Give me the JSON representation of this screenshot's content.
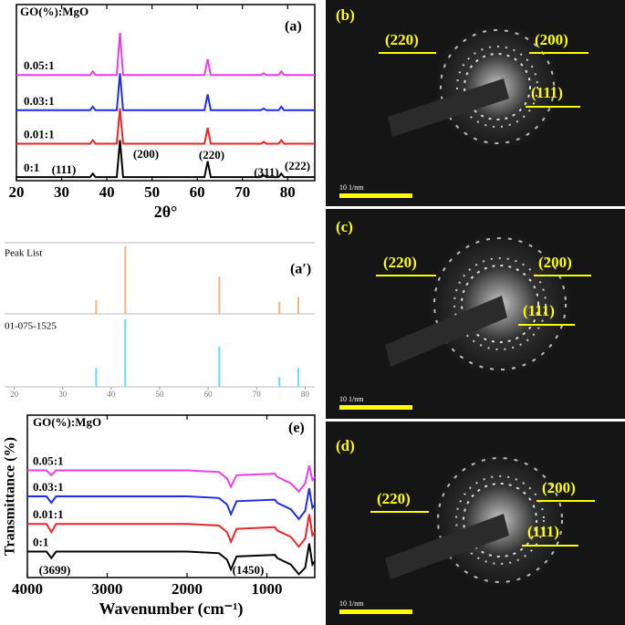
{
  "chart_data": [
    {
      "type": "line",
      "panel_label": "(a)",
      "title": "GO(%):MgO",
      "x_label": "2θ°",
      "annotations": [
        "(111)",
        "(200)",
        "(220)",
        "(311)",
        "(222)"
      ],
      "x": [
        20,
        36.3,
        36.9,
        37.5,
        42.2,
        42.9,
        43.6,
        61.6,
        62.3,
        63.0,
        74.1,
        74.7,
        75.3,
        78.0,
        78.6,
        79.2,
        86
      ],
      "xlim": [
        20,
        86
      ],
      "xticks": [
        20,
        30,
        40,
        50,
        60,
        70,
        80
      ],
      "ylim": [
        0,
        100
      ],
      "series": [
        {
          "name": "0:1",
          "color": "#000000",
          "values": [
            2,
            2,
            4,
            2,
            2,
            23,
            2,
            2,
            11,
            2,
            2,
            3,
            2,
            2,
            4,
            2,
            2
          ]
        },
        {
          "name": "0.01:1",
          "color": "#e8262a",
          "values": [
            21,
            21,
            23,
            21,
            21,
            41,
            21,
            21,
            30,
            21,
            21,
            22,
            21,
            21,
            23,
            21,
            21
          ]
        },
        {
          "name": "0.03:1",
          "color": "#1f2ee0",
          "values": [
            40,
            40,
            42,
            40,
            40,
            61,
            40,
            40,
            49,
            40,
            40,
            41,
            40,
            40,
            42,
            40,
            40
          ]
        },
        {
          "name": "0.05:1",
          "color": "#e83ee8",
          "values": [
            60,
            60,
            62,
            60,
            60,
            84,
            60,
            60,
            69,
            60,
            60,
            61,
            60,
            60,
            62,
            60,
            60
          ]
        }
      ]
    },
    {
      "type": "stick",
      "panel_label": "(a′)",
      "x": [
        36.9,
        42.9,
        62.3,
        74.7,
        78.6
      ],
      "xlim": [
        18,
        82
      ],
      "xticks": [
        20,
        30,
        40,
        50,
        60,
        70,
        80
      ],
      "ylim": [
        0,
        100
      ],
      "series": [
        {
          "name": "Peak List",
          "color": "#f4b183",
          "values": [
            20,
            100,
            55,
            18,
            25
          ]
        },
        {
          "name": "01-075-1525",
          "color": "#66dff0",
          "values": [
            28,
            100,
            60,
            14,
            28
          ]
        }
      ]
    },
    {
      "type": "line",
      "panel_label": "(e)",
      "title": "GO(%):MgO",
      "x_label": "Wavenumber (cm⁻¹)",
      "y_label": "Transmittance (%)",
      "annotations": [
        "(3699)",
        "(1450)"
      ],
      "x": [
        4000,
        3760,
        3699,
        3640,
        2000,
        1600,
        1500,
        1450,
        1380,
        900,
        870,
        700,
        600,
        520,
        470,
        430,
        400
      ],
      "xlim": [
        4000,
        400
      ],
      "xticks": [
        4000,
        3000,
        2000,
        1000
      ],
      "ylim": [
        0,
        100
      ],
      "series": [
        {
          "name": "0:1",
          "color": "#000000",
          "values": [
            16,
            16,
            12,
            16,
            16,
            15,
            11,
            5,
            13,
            14,
            12,
            8,
            2,
            6,
            21,
            8,
            10
          ]
        },
        {
          "name": "0.01:1",
          "color": "#e8262a",
          "values": [
            33,
            33,
            28,
            33,
            33,
            32,
            28,
            22,
            30,
            31,
            29,
            25,
            19,
            24,
            39,
            26,
            28
          ]
        },
        {
          "name": "0.03:1",
          "color": "#1f2ee0",
          "values": [
            50,
            50,
            46,
            50,
            50,
            49,
            45,
            39,
            47,
            48,
            46,
            42,
            36,
            41,
            55,
            43,
            45
          ]
        },
        {
          "name": "0.05:1",
          "color": "#e83ee8",
          "values": [
            66,
            66,
            63,
            66,
            66,
            65,
            61,
            56,
            63,
            64,
            62,
            58,
            53,
            58,
            69,
            60,
            62
          ]
        }
      ]
    }
  ],
  "saed_panels": [
    {
      "label": "(b)",
      "planes": [
        "(220)",
        "(200)",
        "(111)"
      ],
      "scale": "10 1/nm"
    },
    {
      "label": "(c)",
      "planes": [
        "(220)",
        "(200)",
        "(111)"
      ],
      "scale": "10 1/nm"
    },
    {
      "label": "(d)",
      "planes": [
        "(220)",
        "(200)",
        "(111)"
      ],
      "scale": "10 1/nm"
    }
  ]
}
